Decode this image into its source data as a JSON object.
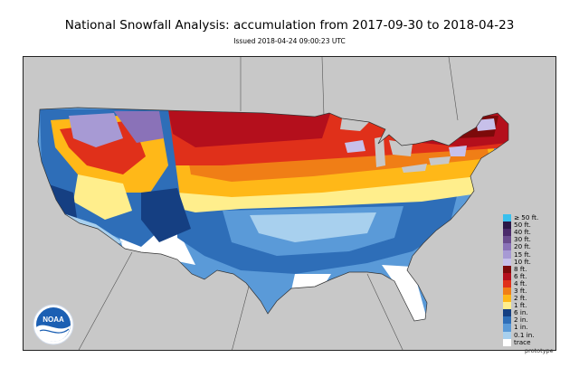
{
  "header": {
    "title": "National Snowfall Analysis: accumulation from 2017-09-30 to 2018-04-23",
    "issued": "Issued 2018-04-24 09:00:23 UTC"
  },
  "legend": {
    "items": [
      {
        "label": "≥ 50 ft.",
        "color": "#39c0ee"
      },
      {
        "label": "50 ft.",
        "color": "#2b1848"
      },
      {
        "label": "40 ft.",
        "color": "#4a2a6a"
      },
      {
        "label": "30 ft.",
        "color": "#6a4c8e"
      },
      {
        "label": "20 ft.",
        "color": "#8a72b8"
      },
      {
        "label": "15 ft.",
        "color": "#a79ad4"
      },
      {
        "label": "10 ft.",
        "color": "#c7c0ea"
      },
      {
        "label": "8 ft.",
        "color": "#7c0a0a"
      },
      {
        "label": "6 ft.",
        "color": "#b40f1c"
      },
      {
        "label": "4 ft.",
        "color": "#e0301a"
      },
      {
        "label": "3 ft.",
        "color": "#f07e16"
      },
      {
        "label": "2 ft.",
        "color": "#ffb818"
      },
      {
        "label": "1 ft.",
        "color": "#ffee8c"
      },
      {
        "label": "6 in.",
        "color": "#153f82"
      },
      {
        "label": "2 in.",
        "color": "#2e6eb8"
      },
      {
        "label": "1 in.",
        "color": "#5a9ad8"
      },
      {
        "label": "0.1 in.",
        "color": "#a8d0ee"
      },
      {
        "label": "trace",
        "color": "#ffffff"
      }
    ]
  },
  "footer": {
    "note": "prototype"
  },
  "logo": {
    "text": "NOAA",
    "icon": "noaa-logo-icon"
  },
  "map": {
    "background_color": "#c8c8c8",
    "border_color": "#555555"
  }
}
